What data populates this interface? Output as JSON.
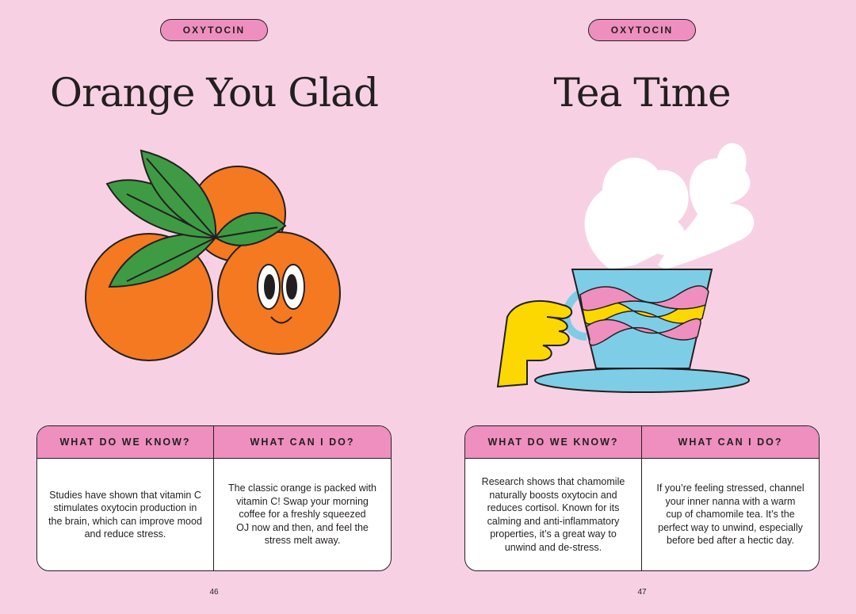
{
  "pages": [
    {
      "tag": "OXYTOCIN",
      "title": "Orange You Glad",
      "illustration": "oranges-with-leaves",
      "table": {
        "headers": [
          "WHAT DO WE KNOW?",
          "WHAT CAN I DO?"
        ],
        "know": [
          "Studies have shown that vitamin C",
          "stimulates oxytocin production in",
          "the brain, which can improve mood",
          "and reduce stress."
        ],
        "do": [
          "The classic orange is packed with",
          "vitamin C! Swap your morning",
          "coffee for a freshly squeezed",
          "OJ now and then, and feel the",
          "stress melt away."
        ]
      },
      "page_number": "46"
    },
    {
      "tag": "OXYTOCIN",
      "title": "Tea Time",
      "illustration": "hand-holding-teacup",
      "table": {
        "headers": [
          "WHAT DO WE KNOW?",
          "WHAT CAN I DO?"
        ],
        "know": [
          "Research shows that chamomile",
          "naturally boosts oxytocin and",
          "reduces cortisol. Known for its",
          "calming and anti-inflammatory",
          "properties, it’s a great way to",
          "unwind and de-stress."
        ],
        "do": [
          "If you’re feeling stressed, channel",
          "your inner nanna with a warm",
          "cup of chamomile tea. It’s the",
          "perfect way to unwind, especially",
          "before bed after a hectic day."
        ]
      },
      "page_number": "47"
    }
  ],
  "colors": {
    "background": "#f7d1e3",
    "accent_pink": "#ee8fbf",
    "orange": "#f47920",
    "leaf": "#3f9a44",
    "cup_blue": "#7ecde6",
    "hand_yellow": "#fcd800"
  }
}
